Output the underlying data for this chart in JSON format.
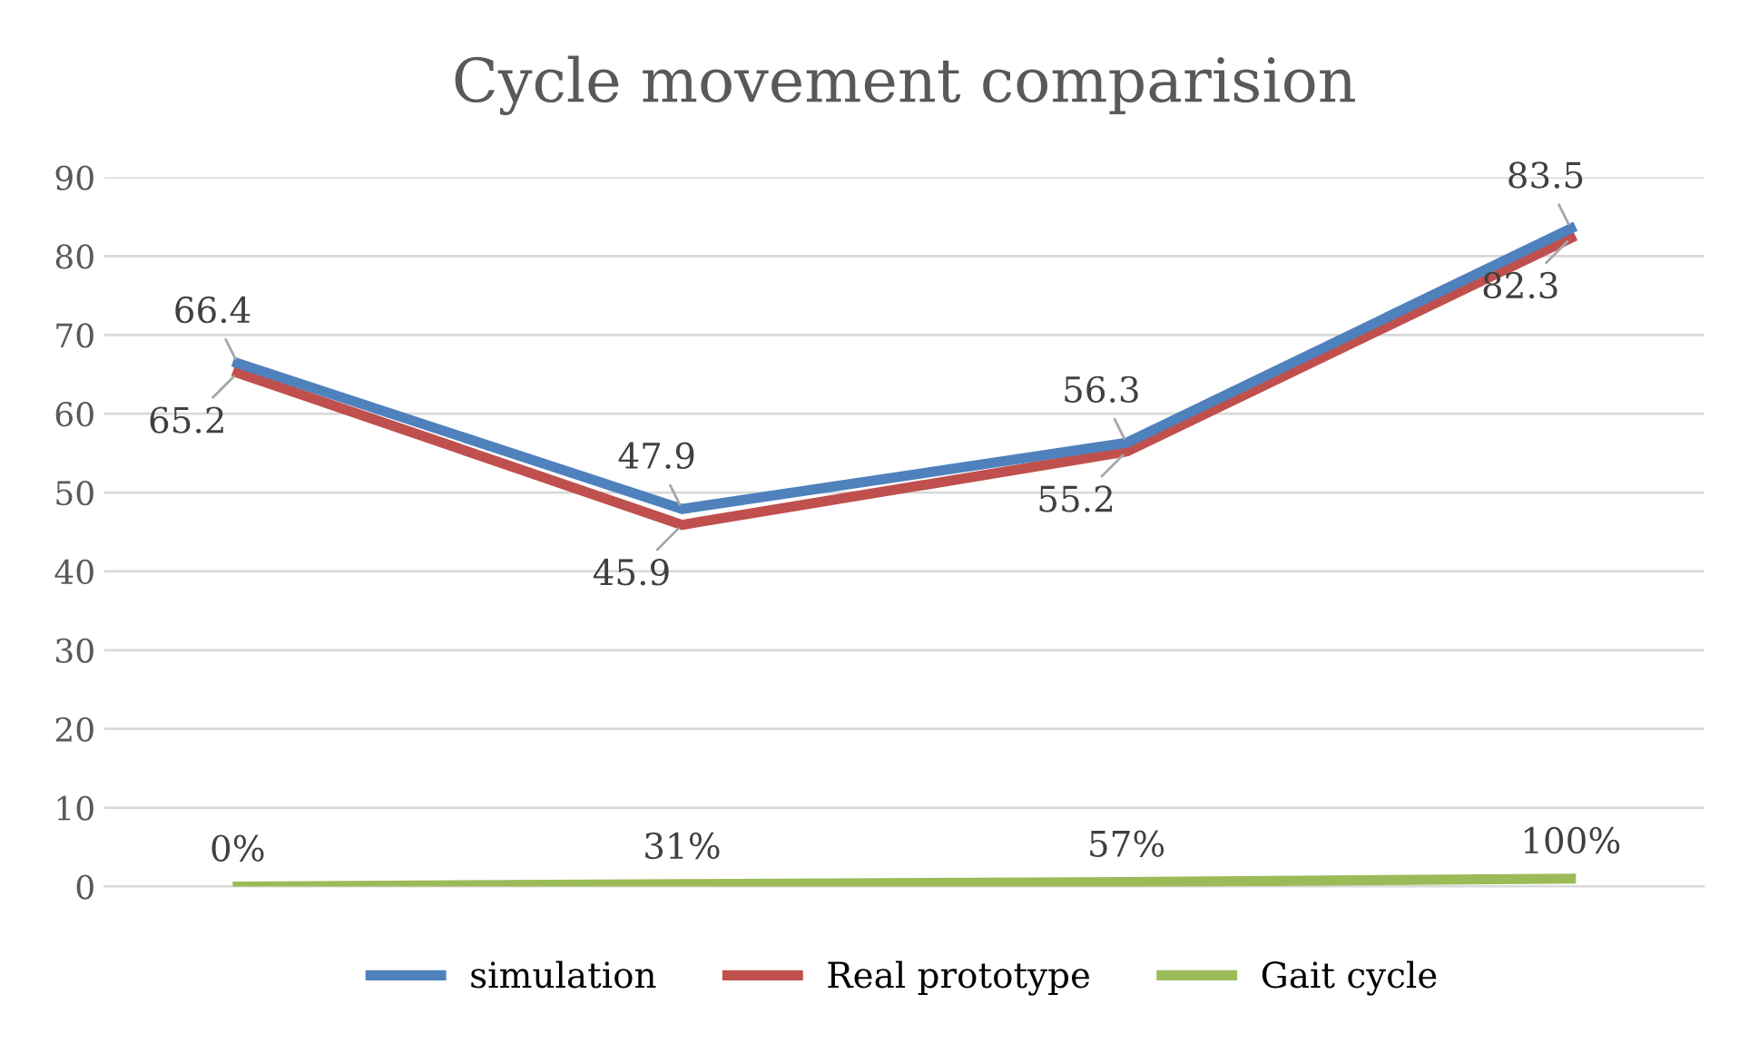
{
  "chart_data": {
    "type": "line",
    "title": "Cycle movement comparision",
    "categories": [
      null,
      null,
      null,
      null
    ],
    "series": [
      {
        "name": "simulation",
        "color": "#4f81bd",
        "values": [
          66.4,
          47.9,
          56.3,
          83.5
        ],
        "value_labels": [
          "66.4",
          "47.9",
          "56.3",
          "83.5"
        ]
      },
      {
        "name": "Real prototype",
        "color": "#c0504d",
        "values": [
          65.2,
          45.9,
          55.2,
          82.3
        ],
        "value_labels": [
          "65.2",
          "45.9",
          "55.2",
          "82.3"
        ]
      },
      {
        "name": "Gait cycle",
        "color": "#9bbb59",
        "values": [
          0,
          0.31,
          0.57,
          1.0
        ],
        "value_labels": [
          "0%",
          "31%",
          "57%",
          "100%"
        ]
      }
    ],
    "ylim": [
      0,
      90
    ],
    "yticks": [
      0,
      10,
      20,
      30,
      40,
      50,
      60,
      70,
      80,
      90
    ],
    "grid": "y",
    "legend": "bottom",
    "marker": "none",
    "line_style": "solid"
  }
}
